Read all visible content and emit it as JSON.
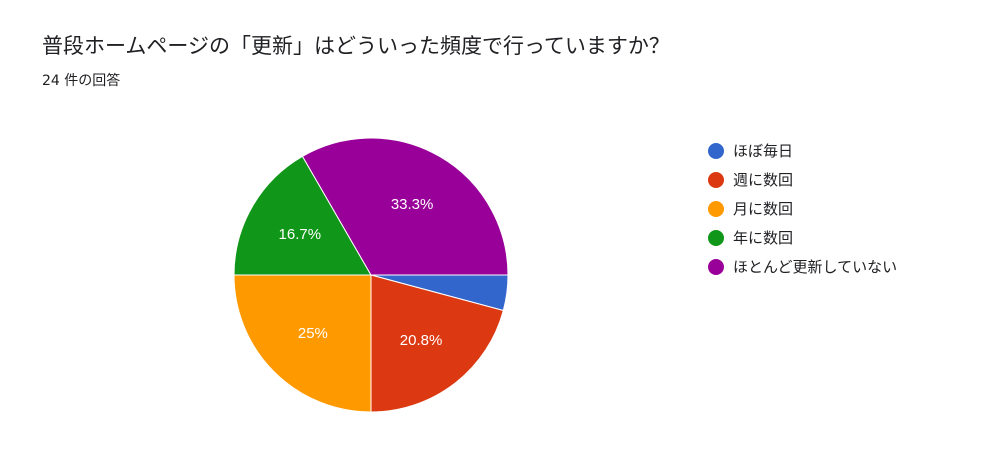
{
  "header": {
    "title": "普段ホームページの「更新」はどういった頻度で行っていますか？",
    "response_count": "24 件の回答"
  },
  "chart_data": {
    "type": "pie",
    "title": "普段ホームページの「更新」はどういった頻度で行っていますか？",
    "total_responses": 24,
    "legend_position": "right",
    "slices": [
      {
        "label": "ほぼ毎日",
        "value": 1,
        "percent_label": "",
        "color": "#3366cc"
      },
      {
        "label": "週に数回",
        "value": 5,
        "percent_label": "20.8%",
        "color": "#dc3912"
      },
      {
        "label": "月に数回",
        "value": 6,
        "percent_label": "25%",
        "color": "#ff9900"
      },
      {
        "label": "年に数回",
        "value": 4,
        "percent_label": "16.7%",
        "color": "#109618"
      },
      {
        "label": "ほとんど更新していない",
        "value": 8,
        "percent_label": "33.3%",
        "color": "#990099"
      }
    ]
  }
}
